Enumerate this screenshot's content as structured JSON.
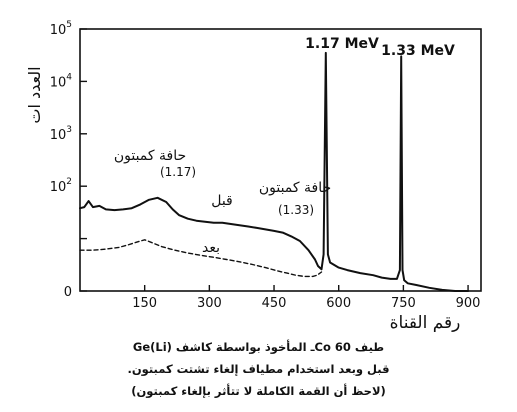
{
  "chart_data": {
    "type": "line",
    "title": "",
    "xlabel": "رقم القناة",
    "ylabel": "العدد ات",
    "x_ticks": [
      "150",
      "300",
      "450",
      "600",
      "750",
      "900"
    ],
    "y_ticks": [
      {
        "base": "10",
        "exp": "5"
      },
      {
        "base": "10",
        "exp": "4"
      },
      {
        "base": "10",
        "exp": "3"
      },
      {
        "base": "10",
        "exp": "2"
      },
      {
        "base": "",
        "exp": ""
      },
      {
        "base": "0",
        "exp": ""
      }
    ],
    "xlim": [
      0,
      930
    ],
    "ylim": [
      1,
      100000
    ],
    "y_scale": "log",
    "grid": false,
    "series": [
      {
        "name": "قبل",
        "style": "solid",
        "x": [
          0,
          10,
          20,
          30,
          45,
          60,
          80,
          100,
          120,
          140,
          160,
          180,
          200,
          215,
          230,
          250,
          270,
          290,
          310,
          330,
          350,
          370,
          390,
          410,
          430,
          450,
          470,
          490,
          510,
          530,
          545,
          552,
          560,
          565,
          570,
          575,
          580,
          600,
          620,
          650,
          680,
          700,
          720,
          735,
          742,
          745,
          748,
          752,
          760,
          780,
          810,
          840,
          870,
          900
        ],
        "y": [
          38,
          40,
          52,
          40,
          42,
          36,
          35,
          36,
          38,
          45,
          55,
          60,
          50,
          36,
          28,
          24,
          22,
          21,
          20,
          20,
          19,
          18,
          17,
          16,
          15,
          14,
          13,
          11,
          9,
          6,
          4,
          3,
          2.6,
          5,
          35000,
          5,
          3.5,
          2.8,
          2.5,
          2.2,
          2.0,
          1.8,
          1.7,
          1.7,
          2.5,
          30000,
          2.5,
          1.6,
          1.4,
          1.3,
          1.15,
          1.05,
          1.0,
          1.0
        ]
      },
      {
        "name": "بعد",
        "style": "dashed",
        "x": [
          0,
          30,
          60,
          90,
          110,
          130,
          150,
          165,
          190,
          220,
          250,
          280,
          310,
          340,
          370,
          400,
          430,
          460,
          480,
          500,
          520,
          540,
          550,
          560
        ],
        "y": [
          6,
          6,
          6.3,
          6.8,
          7.5,
          8.5,
          9.5,
          8.5,
          7,
          6,
          5.3,
          4.8,
          4.4,
          4.0,
          3.6,
          3.2,
          2.8,
          2.4,
          2.2,
          2.0,
          1.9,
          1.9,
          2.0,
          2.3
        ]
      }
    ],
    "annotations": [
      {
        "id": "peak_117",
        "text": "1.17 MeV"
      },
      {
        "id": "peak_133",
        "text": "1.33 MeV"
      },
      {
        "id": "compton_117",
        "text": "حافة كمبتون",
        "sub": "(1.17)"
      },
      {
        "id": "compton_133",
        "text": "حافة كمبتون",
        "sub": "(1.33)"
      },
      {
        "id": "before",
        "text": "قبل"
      },
      {
        "id": "after",
        "text": "بعد"
      }
    ]
  },
  "caption": {
    "line1": "طيف Co 60ـ المأخوذ بواسطة كاشف Ge(Li)",
    "line2": "قبل وبعد استخدام مطياف إلغاء تشتت كمبتون.",
    "line3": "(لاحظ أن القمة الكاملة لا تتأثر بإلغاء كمبتون)"
  },
  "colors": {
    "ink": "#111111",
    "background": "#ffffff"
  }
}
